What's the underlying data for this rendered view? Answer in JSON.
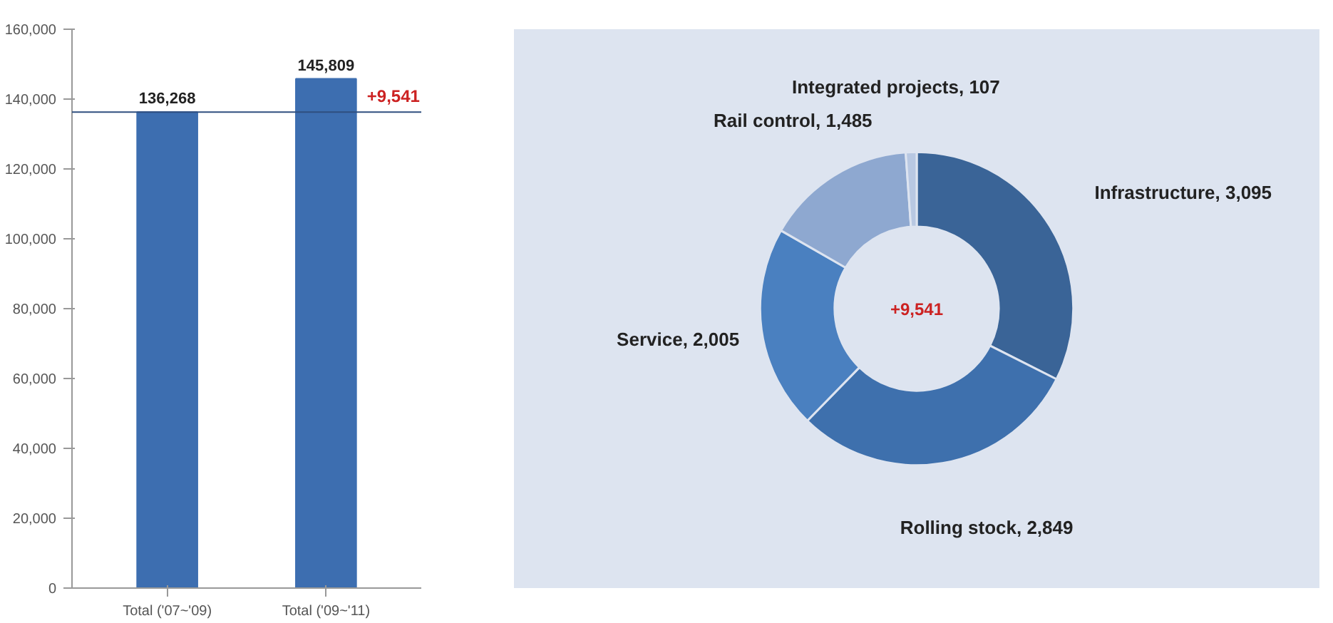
{
  "chart_data": [
    {
      "type": "bar",
      "categories": [
        "Total ('07~'09)",
        "Total ('09~'11)"
      ],
      "values": [
        136268,
        145809
      ],
      "value_labels": [
        "136,268",
        "145,809"
      ],
      "color": "#3d6eb0",
      "ylim": [
        0,
        160000
      ],
      "yticks": [
        {
          "value": 0,
          "label": "0"
        },
        {
          "value": 20000,
          "label": "20,000"
        },
        {
          "value": 40000,
          "label": "40,000"
        },
        {
          "value": 60000,
          "label": "60,000"
        },
        {
          "value": 80000,
          "label": "80,000"
        },
        {
          "value": 100000,
          "label": "100,000"
        },
        {
          "value": 120000,
          "label": "120,000"
        },
        {
          "value": 140000,
          "label": "140,000"
        },
        {
          "value": 160000,
          "label": "160,000"
        }
      ],
      "grid": false,
      "ref_lines": [
        {
          "axis": "y",
          "value": 136268,
          "color": "#2f4f7f"
        }
      ],
      "annotations": [
        "+9,541"
      ]
    },
    {
      "type": "donut",
      "categories": [
        "Infrastructure",
        "Rolling stock",
        "Service",
        "Rail control",
        "Integrated projects"
      ],
      "values": [
        3095,
        2849,
        2005,
        1485,
        107
      ],
      "value_labels": [
        ", 3,095",
        ", 2,849",
        ", 2,005",
        ", 1,485",
        ",  107"
      ],
      "colors": [
        "#3a6497",
        "#3e70ad",
        "#4a80c0",
        "#8ea8d0",
        "#b8c8e2"
      ],
      "annotations": [
        "+9,541"
      ]
    }
  ]
}
